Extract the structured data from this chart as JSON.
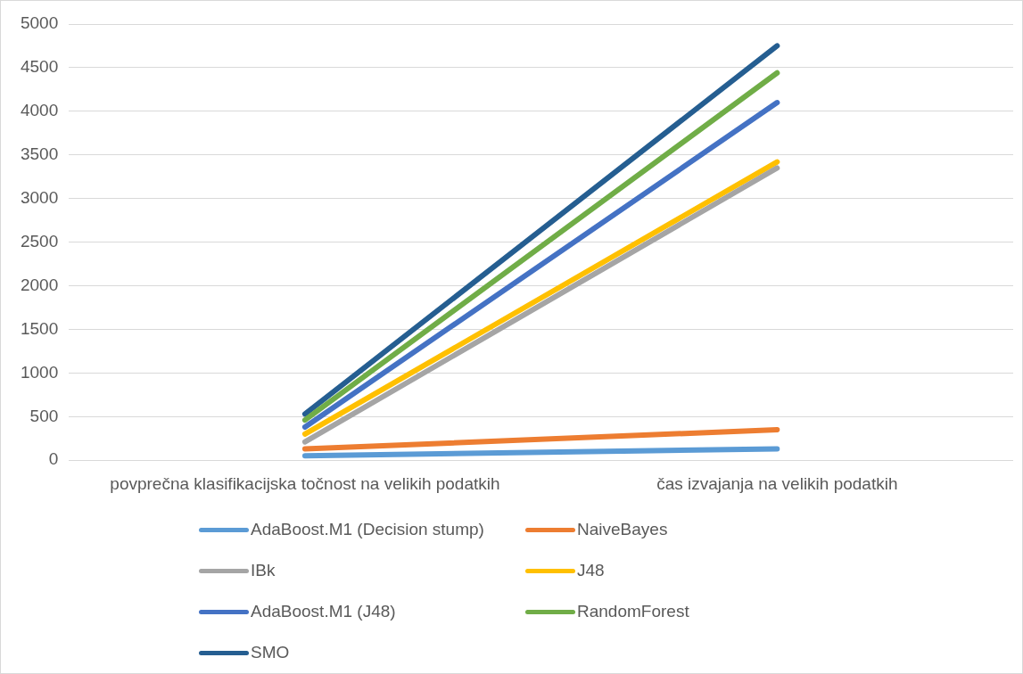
{
  "chart_data": {
    "type": "line",
    "categories": [
      "povprečna klasifikacijska točnost na velikih podatkih",
      "čas izvajanja na velikih podatkih"
    ],
    "series": [
      {
        "name": "AdaBoost.M1 (Decision stump)",
        "color": "#5b9bd5",
        "values": [
          50,
          130
        ]
      },
      {
        "name": "NaiveBayes",
        "color": "#ed7d31",
        "values": [
          130,
          350
        ]
      },
      {
        "name": "IBk",
        "color": "#a5a5a5",
        "values": [
          210,
          3350
        ]
      },
      {
        "name": "J48",
        "color": "#ffc000",
        "values": [
          300,
          3420
        ]
      },
      {
        "name": "AdaBoost.M1 (J48)",
        "color": "#4472c4",
        "values": [
          380,
          4100
        ]
      },
      {
        "name": "RandomForest",
        "color": "#70ad47",
        "values": [
          460,
          4440
        ]
      },
      {
        "name": "SMO",
        "color": "#255e91",
        "values": [
          530,
          4750
        ]
      }
    ],
    "ylim": [
      0,
      5000
    ],
    "yticks": [
      0,
      500,
      1000,
      1500,
      2000,
      2500,
      3000,
      3500,
      4000,
      4500,
      5000
    ],
    "grid": "y",
    "legend": "bottom",
    "marker": "none",
    "line_style": "solid"
  }
}
